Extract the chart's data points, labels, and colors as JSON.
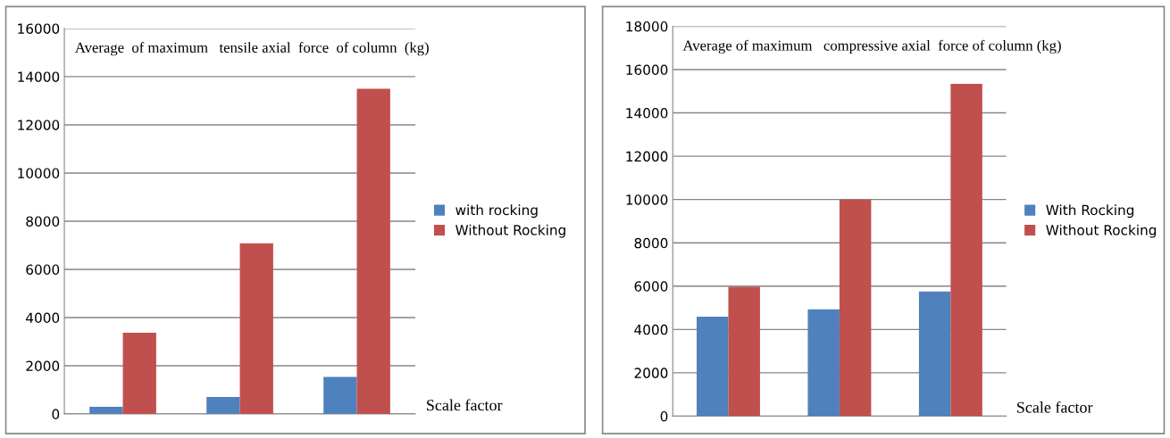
{
  "chart_data": [
    {
      "type": "bar",
      "title": "Average  of maximum   tensile axial  force  of column  (kg)",
      "xlabel": "Scale factor",
      "categories": [
        null,
        null,
        null
      ],
      "series": [
        {
          "name": "with rocking",
          "color": "#4f81bd",
          "values": [
            300,
            700,
            1540
          ]
        },
        {
          "name": "Without Rocking",
          "color": "#c0504d",
          "values": [
            3370,
            7080,
            13500
          ]
        }
      ],
      "ylim": [
        0,
        16000
      ],
      "yticks": [
        0,
        2000,
        4000,
        6000,
        8000,
        10000,
        12000,
        14000,
        16000
      ],
      "grid": "y",
      "legend": "right"
    },
    {
      "type": "bar",
      "title": "Average of maximum   compressive axial  force of column (kg)",
      "xlabel": "Scale factor",
      "categories": [
        null,
        null,
        null
      ],
      "series": [
        {
          "name": "With Rocking",
          "color": "#4f81bd",
          "values": [
            4590,
            4930,
            5750
          ]
        },
        {
          "name": "Without Rocking",
          "color": "#c0504d",
          "values": [
            5970,
            10000,
            15340
          ]
        }
      ],
      "ylim": [
        0,
        18000
      ],
      "yticks": [
        0,
        2000,
        4000,
        6000,
        8000,
        10000,
        12000,
        14000,
        16000,
        18000
      ],
      "grid": "y",
      "legend": "right"
    }
  ]
}
